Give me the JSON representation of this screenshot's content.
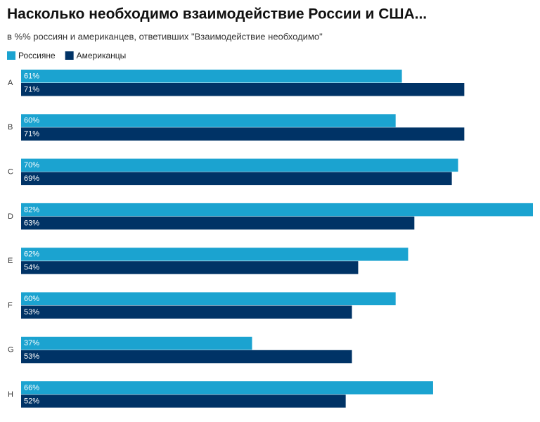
{
  "chart_data": {
    "type": "bar",
    "orientation": "horizontal",
    "title": "Насколько необходимо взаимодействие России и США...",
    "subtitle": "в %% россиян и американцев, ответивших \"Взаимодействие необходимо\"",
    "categories": [
      "A",
      "B",
      "C",
      "D",
      "E",
      "F",
      "G",
      "H"
    ],
    "series": [
      {
        "name": "Россияне",
        "color": "#1ba3d0",
        "values": [
          61,
          60,
          70,
          82,
          62,
          60,
          37,
          66
        ],
        "value_labels": [
          "61%",
          "60%",
          "70%",
          "82%",
          "62%",
          "60%",
          "37%",
          "66%"
        ]
      },
      {
        "name": "Американцы",
        "color": "#003366",
        "values": [
          71,
          71,
          69,
          63,
          54,
          53,
          53,
          52
        ],
        "value_labels": [
          "71%",
          "71%",
          "69%",
          "63%",
          "54%",
          "53%",
          "53%",
          "52%"
        ]
      }
    ]
  }
}
